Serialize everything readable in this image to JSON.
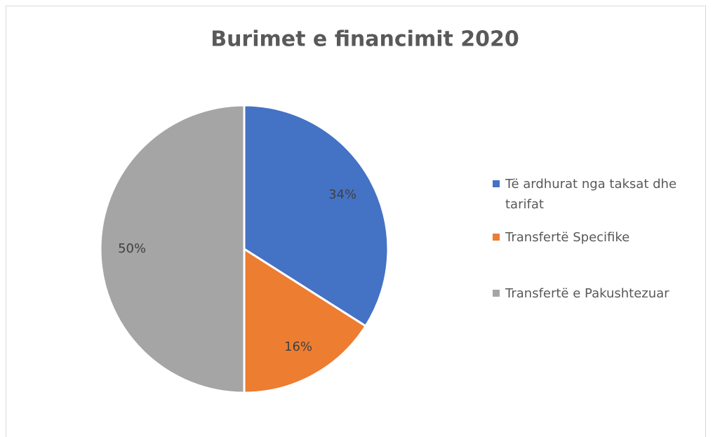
{
  "chart_data": {
    "type": "pie",
    "title": "Burimet e financimit 2020",
    "categories": [
      "Të ardhurat nga taksat dhe tarifat",
      "Transfertë Specifike",
      "Transfertë e Pakushtezuar"
    ],
    "values": [
      34,
      16,
      50
    ],
    "value_labels": [
      "34%",
      "16%",
      "50%"
    ],
    "colors": [
      "#4472c4",
      "#ed7d31",
      "#a5a5a5"
    ],
    "legend": "right"
  }
}
